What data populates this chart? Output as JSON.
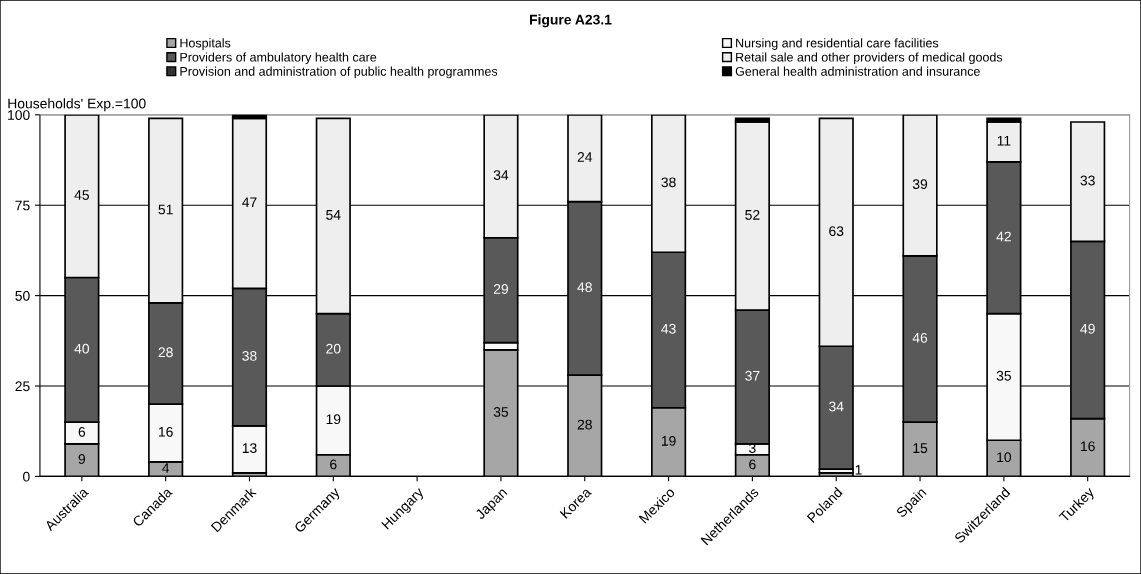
{
  "chart_data": {
    "type": "bar",
    "stacked": true,
    "title": "Figure A23.1",
    "ylabel": "Households' Exp.=100",
    "categories": [
      "Australia",
      "Canada",
      "Denmark",
      "Germany",
      "Hungary",
      "Japan",
      "Korea",
      "Mexico",
      "Netherlands",
      "Poland",
      "Spain",
      "Switzerland",
      "Turkey"
    ],
    "series": [
      {
        "name": "Hospitals",
        "color": "#a6a6a6",
        "values": [
          9,
          4,
          1,
          6,
          null,
          35,
          28,
          19,
          6,
          1,
          15,
          10,
          16
        ],
        "value_labels": [
          "9",
          "4",
          null,
          "6",
          null,
          "35",
          "28",
          "19",
          "6",
          null,
          "15",
          "10",
          "16"
        ]
      },
      {
        "name": "Nursing and residential care facilities",
        "color": "#f8f8f8",
        "values": [
          6,
          16,
          13,
          19,
          null,
          2,
          null,
          null,
          3,
          1,
          null,
          35,
          null
        ],
        "value_labels": [
          "6",
          "16",
          "13",
          "19",
          null,
          null,
          null,
          null,
          "3",
          "1",
          null,
          "35",
          null
        ]
      },
      {
        "name": "Providers of ambulatory health care",
        "color": "#595959",
        "values": [
          40,
          28,
          38,
          20,
          null,
          29,
          48,
          43,
          37,
          34,
          46,
          42,
          49
        ],
        "value_labels": [
          "40",
          "28",
          "38",
          "20",
          null,
          "29",
          "48",
          "43",
          "37",
          "34",
          "46",
          "42",
          "49"
        ]
      },
      {
        "name": "Retail sale and other providers of medical goods",
        "color": "#eeeeee",
        "values": [
          45,
          51,
          47,
          54,
          null,
          34,
          24,
          38,
          52,
          63,
          39,
          11,
          33
        ],
        "value_labels": [
          "45",
          "51",
          "47",
          "54",
          null,
          "34",
          "24",
          "38",
          "52",
          "63",
          "39",
          "11",
          "33"
        ]
      },
      {
        "name": "Provision and administration of public health programmes",
        "color": "#333333",
        "values": [
          null,
          null,
          null,
          null,
          null,
          null,
          null,
          null,
          null,
          null,
          null,
          null,
          null
        ]
      },
      {
        "name": "General health administration and insurance",
        "color": "#000000",
        "values": [
          null,
          null,
          1,
          null,
          null,
          null,
          null,
          null,
          1,
          null,
          null,
          1,
          null
        ]
      }
    ],
    "ylim": [
      0,
      100
    ],
    "yticks": [
      0,
      25,
      50,
      75,
      100
    ],
    "grid": "y",
    "legend": "top"
  }
}
